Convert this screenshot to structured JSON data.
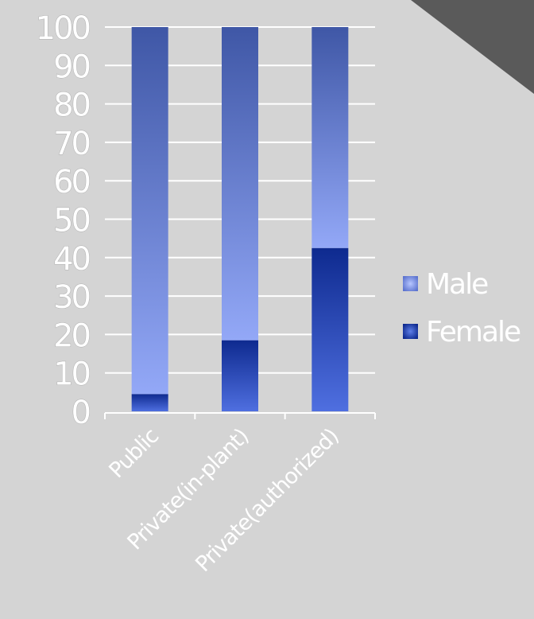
{
  "chart_data": {
    "type": "bar",
    "stacked": true,
    "categories": [
      "Public",
      "Private(in-plant)",
      "Private(authorized)"
    ],
    "series": [
      {
        "name": "Female",
        "values": [
          4.5,
          18.5,
          42.5
        ],
        "color": "#1f3fa8"
      },
      {
        "name": "Male",
        "values": [
          95.5,
          81.5,
          57.5
        ],
        "color": "#6f8be6"
      }
    ],
    "yticks": [
      0,
      10,
      20,
      30,
      40,
      50,
      60,
      70,
      80,
      90,
      100
    ],
    "ylim": [
      0,
      100
    ],
    "grid": true,
    "legend": {
      "position": "right",
      "entries": [
        "Male",
        "Female"
      ]
    },
    "background": "#d4d4d4",
    "gridline_color": "#ffffff",
    "corner_color": "#5a5a5a"
  }
}
